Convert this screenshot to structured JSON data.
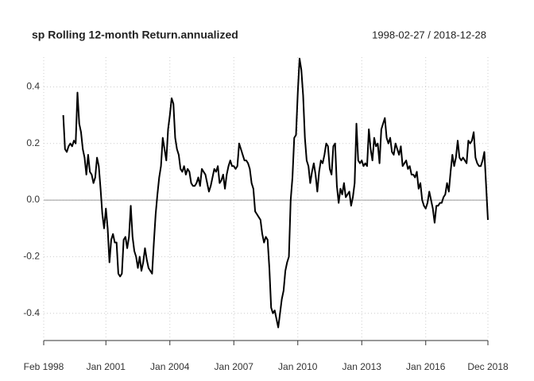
{
  "chart_data": {
    "type": "line",
    "title": "sp Rolling 12-month Return.annualized",
    "subtitle": "1998-02-27 / 2018-12-28",
    "xlim": [
      "1998-02",
      "2018-12"
    ],
    "xticks": [
      {
        "value": "1998-02",
        "label": "Feb 1998"
      },
      {
        "value": "2001-01",
        "label": "Jan 2001"
      },
      {
        "value": "2004-01",
        "label": "Jan 2004"
      },
      {
        "value": "2007-01",
        "label": "Jan 2007"
      },
      {
        "value": "2010-01",
        "label": "Jan 2010"
      },
      {
        "value": "2013-01",
        "label": "Jan 2013"
      },
      {
        "value": "2016-01",
        "label": "Jan 2016"
      },
      {
        "value": "2018-12",
        "label": "Dec 2018"
      }
    ],
    "ylim": [
      -0.485,
      0.505
    ],
    "yticks": [
      -0.4,
      -0.2,
      {
        "value": 0,
        "label": "0.0"
      },
      0.2,
      0.4
    ],
    "grid": true,
    "series": [
      {
        "name": "sp",
        "color": "#000000",
        "x": [
          "1999-01",
          "1999-02",
          "1999-03",
          "1999-04",
          "1999-05",
          "1999-06",
          "1999-07",
          "1999-08",
          "1999-09",
          "1999-10",
          "1999-11",
          "1999-12",
          "2000-01",
          "2000-02",
          "2000-03",
          "2000-04",
          "2000-05",
          "2000-06",
          "2000-07",
          "2000-08",
          "2000-09",
          "2000-10",
          "2000-11",
          "2000-12",
          "2001-01",
          "2001-02",
          "2001-03",
          "2001-04",
          "2001-05",
          "2001-06",
          "2001-07",
          "2001-08",
          "2001-09",
          "2001-10",
          "2001-11",
          "2001-12",
          "2002-01",
          "2002-02",
          "2002-03",
          "2002-04",
          "2002-05",
          "2002-06",
          "2002-07",
          "2002-08",
          "2002-09",
          "2002-10",
          "2002-11",
          "2002-12",
          "2003-01",
          "2003-02",
          "2003-03",
          "2003-04",
          "2003-05",
          "2003-06",
          "2003-07",
          "2003-08",
          "2003-09",
          "2003-10",
          "2003-11",
          "2003-12",
          "2004-01",
          "2004-02",
          "2004-03",
          "2004-04",
          "2004-05",
          "2004-06",
          "2004-07",
          "2004-08",
          "2004-09",
          "2004-10",
          "2004-11",
          "2004-12",
          "2005-01",
          "2005-02",
          "2005-03",
          "2005-04",
          "2005-05",
          "2005-06",
          "2005-07",
          "2005-08",
          "2005-09",
          "2005-10",
          "2005-11",
          "2005-12",
          "2006-01",
          "2006-02",
          "2006-03",
          "2006-04",
          "2006-05",
          "2006-06",
          "2006-07",
          "2006-08",
          "2006-09",
          "2006-10",
          "2006-11",
          "2006-12",
          "2007-01",
          "2007-02",
          "2007-03",
          "2007-04",
          "2007-05",
          "2007-06",
          "2007-07",
          "2007-08",
          "2007-09",
          "2007-10",
          "2007-11",
          "2007-12",
          "2008-01",
          "2008-02",
          "2008-03",
          "2008-04",
          "2008-05",
          "2008-06",
          "2008-07",
          "2008-08",
          "2008-09",
          "2008-10",
          "2008-11",
          "2008-12",
          "2009-01",
          "2009-02",
          "2009-03",
          "2009-04",
          "2009-05",
          "2009-06",
          "2009-07",
          "2009-08",
          "2009-09",
          "2009-10",
          "2009-11",
          "2009-12",
          "2010-01",
          "2010-02",
          "2010-03",
          "2010-04",
          "2010-05",
          "2010-06",
          "2010-07",
          "2010-08",
          "2010-09",
          "2010-10",
          "2010-11",
          "2010-12",
          "2011-01",
          "2011-02",
          "2011-03",
          "2011-04",
          "2011-05",
          "2011-06",
          "2011-07",
          "2011-08",
          "2011-09",
          "2011-10",
          "2011-11",
          "2011-12",
          "2012-01",
          "2012-02",
          "2012-03",
          "2012-04",
          "2012-05",
          "2012-06",
          "2012-07",
          "2012-08",
          "2012-09",
          "2012-10",
          "2012-11",
          "2012-12",
          "2013-01",
          "2013-02",
          "2013-03",
          "2013-04",
          "2013-05",
          "2013-06",
          "2013-07",
          "2013-08",
          "2013-09",
          "2013-10",
          "2013-11",
          "2013-12",
          "2014-01",
          "2014-02",
          "2014-03",
          "2014-04",
          "2014-05",
          "2014-06",
          "2014-07",
          "2014-08",
          "2014-09",
          "2014-10",
          "2014-11",
          "2014-12",
          "2015-01",
          "2015-02",
          "2015-03",
          "2015-04",
          "2015-05",
          "2015-06",
          "2015-07",
          "2015-08",
          "2015-09",
          "2015-10",
          "2015-11",
          "2015-12",
          "2016-01",
          "2016-02",
          "2016-03",
          "2016-04",
          "2016-05",
          "2016-06",
          "2016-07",
          "2016-08",
          "2016-09",
          "2016-10",
          "2016-11",
          "2016-12",
          "2017-01",
          "2017-02",
          "2017-03",
          "2017-04",
          "2017-05",
          "2017-06",
          "2017-07",
          "2017-08",
          "2017-09",
          "2017-10",
          "2017-11",
          "2017-12",
          "2018-01",
          "2018-02",
          "2018-03",
          "2018-04",
          "2018-05",
          "2018-06",
          "2018-07",
          "2018-08",
          "2018-09",
          "2018-10",
          "2018-11",
          "2018-12"
        ],
        "values": [
          0.3,
          0.18,
          0.17,
          0.19,
          0.2,
          0.19,
          0.21,
          0.2,
          0.38,
          0.27,
          0.24,
          0.18,
          0.15,
          0.09,
          0.16,
          0.1,
          0.09,
          0.06,
          0.08,
          0.15,
          0.12,
          0.04,
          -0.05,
          -0.1,
          -0.03,
          -0.1,
          -0.22,
          -0.14,
          -0.12,
          -0.15,
          -0.15,
          -0.26,
          -0.27,
          -0.26,
          -0.14,
          -0.13,
          -0.17,
          -0.13,
          -0.02,
          -0.13,
          -0.18,
          -0.2,
          -0.24,
          -0.2,
          -0.25,
          -0.22,
          -0.17,
          -0.21,
          -0.24,
          -0.25,
          -0.26,
          -0.15,
          -0.05,
          0.02,
          0.08,
          0.12,
          0.22,
          0.18,
          0.14,
          0.25,
          0.3,
          0.36,
          0.34,
          0.22,
          0.18,
          0.16,
          0.11,
          0.1,
          0.12,
          0.09,
          0.11,
          0.1,
          0.06,
          0.05,
          0.05,
          0.06,
          0.08,
          0.05,
          0.11,
          0.1,
          0.09,
          0.06,
          0.03,
          0.05,
          0.08,
          0.11,
          0.1,
          0.12,
          0.06,
          0.07,
          0.09,
          0.04,
          0.09,
          0.12,
          0.14,
          0.12,
          0.12,
          0.11,
          0.12,
          0.2,
          0.18,
          0.16,
          0.14,
          0.14,
          0.13,
          0.11,
          0.06,
          0.04,
          -0.04,
          -0.05,
          -0.06,
          -0.07,
          -0.12,
          -0.15,
          -0.13,
          -0.14,
          -0.24,
          -0.38,
          -0.4,
          -0.39,
          -0.42,
          -0.45,
          -0.4,
          -0.35,
          -0.32,
          -0.25,
          -0.22,
          -0.2,
          0.0,
          0.08,
          0.22,
          0.23,
          0.38,
          0.5,
          0.46,
          0.37,
          0.22,
          0.14,
          0.12,
          0.06,
          0.1,
          0.13,
          0.09,
          0.03,
          0.1,
          0.14,
          0.13,
          0.16,
          0.2,
          0.19,
          0.11,
          0.09,
          0.19,
          0.2,
          0.05,
          -0.01,
          0.04,
          0.02,
          0.06,
          0.01,
          0.02,
          0.03,
          -0.02,
          0.01,
          0.06,
          0.27,
          0.14,
          0.13,
          0.14,
          0.12,
          0.13,
          0.12,
          0.25,
          0.18,
          0.14,
          0.22,
          0.19,
          0.2,
          0.13,
          0.25,
          0.27,
          0.29,
          0.22,
          0.2,
          0.22,
          0.17,
          0.16,
          0.2,
          0.18,
          0.16,
          0.19,
          0.12,
          0.13,
          0.14,
          0.11,
          0.12,
          0.09,
          0.09,
          0.08,
          0.1,
          0.04,
          0.06,
          0.0,
          -0.02,
          -0.03,
          -0.01,
          0.03,
          0.0,
          -0.03,
          -0.08,
          -0.02,
          -0.02,
          -0.01,
          -0.01,
          0.01,
          0.02,
          0.06,
          0.03,
          0.1,
          0.16,
          0.12,
          0.15,
          0.21,
          0.15,
          0.14,
          0.15,
          0.14,
          0.13,
          0.21,
          0.2,
          0.21,
          0.24,
          0.15,
          0.13,
          0.12,
          0.12,
          0.14,
          0.17,
          0.05,
          -0.07
        ]
      }
    ]
  }
}
